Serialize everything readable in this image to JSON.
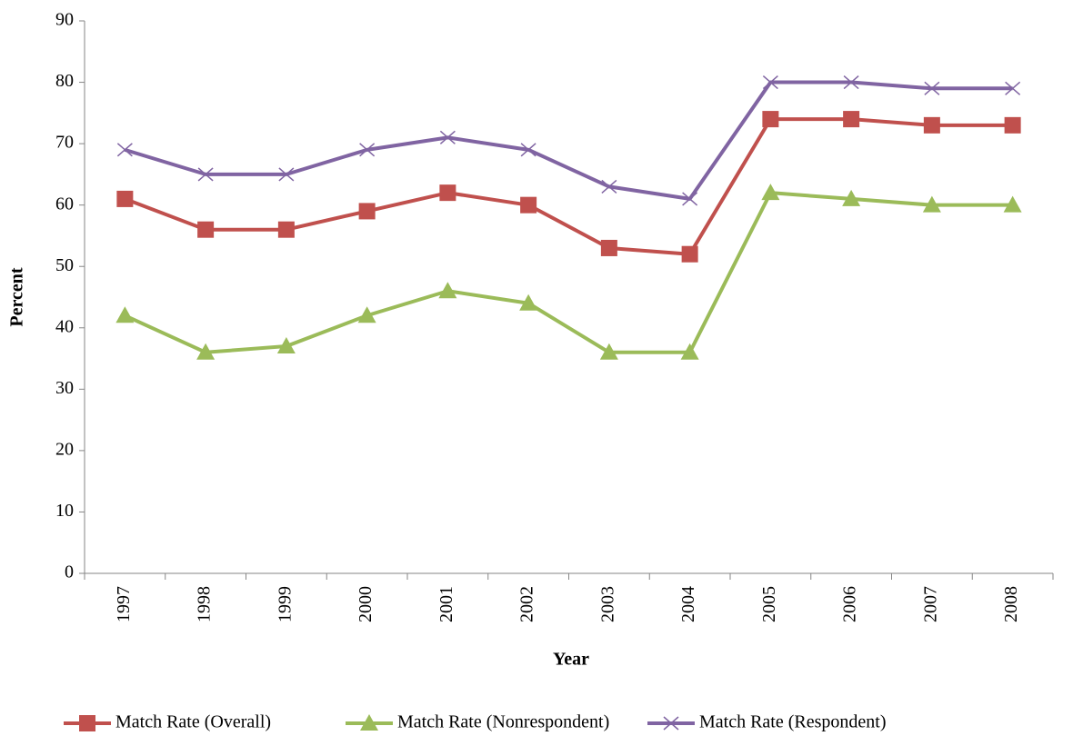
{
  "chart_data": {
    "type": "line",
    "x_label": "Year",
    "y_label": "Percent",
    "categories": [
      "1997",
      "1998",
      "1999",
      "2000",
      "2001",
      "2002",
      "2003",
      "2004",
      "2005",
      "2006",
      "2007",
      "2008"
    ],
    "series": [
      {
        "name": "Match Rate (Overall)",
        "color": "#c0504d",
        "marker": "square",
        "values": [
          61,
          56,
          56,
          59,
          62,
          60,
          53,
          52,
          74,
          74,
          73,
          73
        ]
      },
      {
        "name": "Match Rate (Nonrespondent)",
        "color": "#9bbb59",
        "marker": "triangle",
        "values": [
          42,
          36,
          37,
          42,
          46,
          44,
          36,
          36,
          62,
          61,
          60,
          60
        ]
      },
      {
        "name": "Match Rate (Respondent)",
        "color": "#8064a2",
        "marker": "x",
        "values": [
          69,
          65,
          65,
          69,
          71,
          69,
          63,
          61,
          80,
          80,
          79,
          79
        ]
      }
    ],
    "ylim": [
      0,
      90
    ],
    "yticks": [
      0,
      10,
      20,
      30,
      40,
      50,
      60,
      70,
      80,
      90
    ],
    "grid": false,
    "legend": "bottom"
  }
}
